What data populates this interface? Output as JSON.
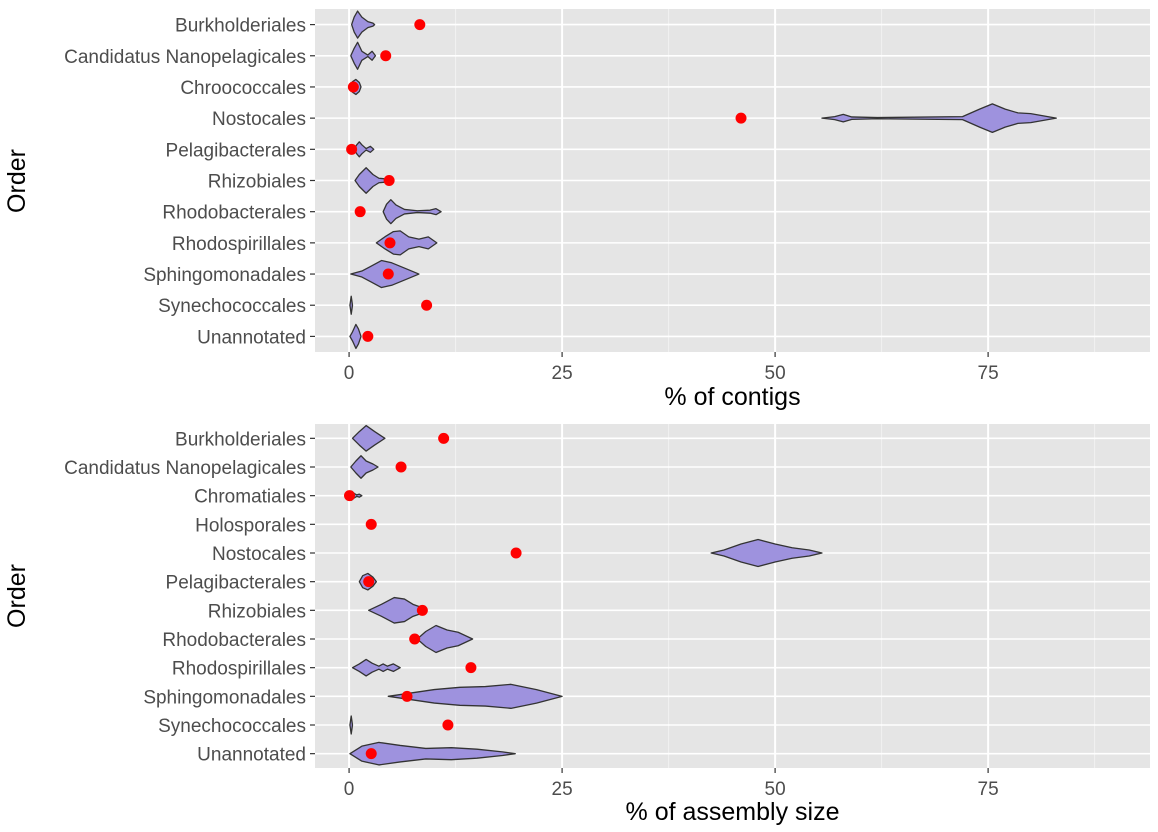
{
  "chart_data": [
    {
      "type": "violin",
      "xlabel": "% of contigs",
      "ylabel": "Order",
      "xlim": [
        -4,
        94
      ],
      "xticks": [
        0,
        25,
        50,
        75
      ],
      "grid": true,
      "categories": [
        "Burkholderiales",
        "Candidatus Nanopelagicales",
        "Chroococcales",
        "Nostocales",
        "Pelagibacterales",
        "Rhizobiales",
        "Rhodobacterales",
        "Rhodospirillales",
        "Sphingomonadales",
        "Synechococcales",
        "Unannotated"
      ],
      "violin_color": "#9e92de",
      "point_color": "#ff0000",
      "series": [
        {
          "category": "Burkholderiales",
          "point": 8.3,
          "density": [
            [
              0.3,
              0
            ],
            [
              0.6,
              0.5
            ],
            [
              1.0,
              0.9
            ],
            [
              1.5,
              0.5
            ],
            [
              2.2,
              0.2
            ],
            [
              2.8,
              0.1
            ],
            [
              3.0,
              0
            ]
          ]
        },
        {
          "category": "Candidatus Nanopelagicales",
          "point": 4.3,
          "density": [
            [
              0.2,
              0
            ],
            [
              0.6,
              0.5
            ],
            [
              1.0,
              0.9
            ],
            [
              1.5,
              0.3
            ],
            [
              2.2,
              0.05
            ],
            [
              2.7,
              0.3
            ],
            [
              3.1,
              0
            ]
          ]
        },
        {
          "category": "Chroococcales",
          "point": 0.5,
          "density": [
            [
              0.1,
              0
            ],
            [
              0.4,
              0.35
            ],
            [
              0.8,
              0.5
            ],
            [
              1.2,
              0.3
            ],
            [
              1.4,
              0
            ]
          ]
        },
        {
          "category": "Nostocales",
          "point": 46,
          "density": [
            [
              55.5,
              0
            ],
            [
              57,
              0.1
            ],
            [
              58,
              0.25
            ],
            [
              59,
              0.08
            ],
            [
              62,
              0.04
            ],
            [
              72,
              0.1
            ],
            [
              74,
              0.6
            ],
            [
              75.5,
              0.95
            ],
            [
              77,
              0.6
            ],
            [
              78.5,
              0.35
            ],
            [
              80,
              0.3
            ],
            [
              81.5,
              0.15
            ],
            [
              83,
              0
            ]
          ]
        },
        {
          "category": "Pelagibacterales",
          "point": 0.3,
          "density": [
            [
              0.6,
              0
            ],
            [
              0.9,
              0.3
            ],
            [
              1.2,
              0.5
            ],
            [
              1.5,
              0.3
            ],
            [
              2.0,
              0.05
            ],
            [
              2.5,
              0.2
            ],
            [
              2.9,
              0
            ]
          ]
        },
        {
          "category": "Rhizobiales",
          "point": 4.7,
          "density": [
            [
              0.7,
              0
            ],
            [
              1.2,
              0.4
            ],
            [
              2.0,
              0.85
            ],
            [
              2.8,
              0.4
            ],
            [
              3.5,
              0.15
            ],
            [
              4.4,
              0.1
            ],
            [
              5.2,
              0
            ]
          ]
        },
        {
          "category": "Rhodobacterales",
          "point": 1.3,
          "density": [
            [
              4.0,
              0
            ],
            [
              4.4,
              0.5
            ],
            [
              4.9,
              0.8
            ],
            [
              5.5,
              0.45
            ],
            [
              6.5,
              0.15
            ],
            [
              8,
              0.06
            ],
            [
              9.5,
              0.1
            ],
            [
              10.2,
              0.2
            ],
            [
              10.8,
              0
            ]
          ]
        },
        {
          "category": "Rhodospirillales",
          "point": 4.8,
          "density": [
            [
              3.2,
              0
            ],
            [
              4.2,
              0.4
            ],
            [
              5.2,
              0.75
            ],
            [
              6.0,
              0.8
            ],
            [
              7.0,
              0.4
            ],
            [
              8.2,
              0.25
            ],
            [
              9.3,
              0.4
            ],
            [
              10.3,
              0
            ]
          ]
        },
        {
          "category": "Sphingomonadales",
          "point": 4.6,
          "density": [
            [
              0.2,
              0
            ],
            [
              1.5,
              0.2
            ],
            [
              2.5,
              0.5
            ],
            [
              3.8,
              0.9
            ],
            [
              5,
              0.75
            ],
            [
              6.5,
              0.4
            ],
            [
              8.2,
              0
            ]
          ]
        },
        {
          "category": "Synechococcales",
          "point": 9.1,
          "density": [
            [
              0.1,
              0
            ],
            [
              0.25,
              0.6
            ],
            [
              0.4,
              0
            ]
          ]
        },
        {
          "category": "Unannotated",
          "point": 2.2,
          "density": [
            [
              0.1,
              0
            ],
            [
              0.4,
              0.3
            ],
            [
              0.8,
              0.8
            ],
            [
              1.1,
              0.5
            ],
            [
              1.4,
              0
            ]
          ]
        }
      ]
    },
    {
      "type": "violin",
      "xlabel": "% of assembly size",
      "ylabel": "Order",
      "xlim": [
        -4,
        94
      ],
      "xticks": [
        0,
        25,
        50,
        75
      ],
      "grid": true,
      "categories": [
        "Burkholderiales",
        "Candidatus Nanopelagicales",
        "Chromatiales",
        "Holosporales",
        "Nostocales",
        "Pelagibacterales",
        "Rhizobiales",
        "Rhodobacterales",
        "Rhodospirillales",
        "Sphingomonadales",
        "Synechococcales",
        "Unannotated"
      ],
      "violin_color": "#9e92de",
      "point_color": "#ff0000",
      "series": [
        {
          "category": "Burkholderiales",
          "point": 11.1,
          "density": [
            [
              0.4,
              0
            ],
            [
              1.2,
              0.45
            ],
            [
              2.0,
              0.85
            ],
            [
              3.0,
              0.45
            ],
            [
              4.2,
              0
            ]
          ]
        },
        {
          "category": "Candidatus Nanopelagicales",
          "point": 6.1,
          "density": [
            [
              0.2,
              0
            ],
            [
              0.8,
              0.4
            ],
            [
              1.4,
              0.75
            ],
            [
              2.0,
              0.4
            ],
            [
              2.8,
              0.2
            ],
            [
              3.4,
              0
            ]
          ]
        },
        {
          "category": "Chromatiales",
          "point": 0.05,
          "density": [
            [
              0.0,
              0
            ],
            [
              0.3,
              0.3
            ],
            [
              0.6,
              0.15
            ],
            [
              0.9,
              0.05
            ],
            [
              1.2,
              0.1
            ],
            [
              1.5,
              0
            ]
          ]
        },
        {
          "category": "Holosporales",
          "point": 2.6,
          "density": []
        },
        {
          "category": "Nostocales",
          "point": 19.6,
          "density": [
            [
              42.5,
              0
            ],
            [
              44,
              0.2
            ],
            [
              46,
              0.6
            ],
            [
              48,
              0.9
            ],
            [
              50,
              0.6
            ],
            [
              52,
              0.35
            ],
            [
              54,
              0.2
            ],
            [
              55.5,
              0
            ]
          ]
        },
        {
          "category": "Pelagibacterales",
          "point": 2.3,
          "density": [
            [
              1.2,
              0
            ],
            [
              1.6,
              0.4
            ],
            [
              2.2,
              0.55
            ],
            [
              2.8,
              0.3
            ],
            [
              3.2,
              0
            ]
          ]
        },
        {
          "category": "Rhizobiales",
          "point": 8.6,
          "density": [
            [
              2.3,
              0
            ],
            [
              3.8,
              0.4
            ],
            [
              5.3,
              0.85
            ],
            [
              6.5,
              0.75
            ],
            [
              7.5,
              0.4
            ],
            [
              8.5,
              0.2
            ],
            [
              9,
              0
            ]
          ]
        },
        {
          "category": "Rhodobacterales",
          "point": 7.7,
          "density": [
            [
              8.0,
              0
            ],
            [
              9.0,
              0.5
            ],
            [
              10.2,
              0.9
            ],
            [
              11.5,
              0.6
            ],
            [
              12.8,
              0.45
            ],
            [
              14.5,
              0
            ]
          ]
        },
        {
          "category": "Rhodospirillales",
          "point": 14.3,
          "density": [
            [
              0.4,
              0
            ],
            [
              1.2,
              0.25
            ],
            [
              2.0,
              0.55
            ],
            [
              2.7,
              0.3
            ],
            [
              3.5,
              0.1
            ],
            [
              4.0,
              0.25
            ],
            [
              4.5,
              0.1
            ],
            [
              5.2,
              0.25
            ],
            [
              6.0,
              0
            ]
          ]
        },
        {
          "category": "Sphingomonadales",
          "point": 6.8,
          "density": [
            [
              4.6,
              0
            ],
            [
              7,
              0.2
            ],
            [
              10,
              0.45
            ],
            [
              13,
              0.6
            ],
            [
              16,
              0.65
            ],
            [
              19,
              0.8
            ],
            [
              22,
              0.45
            ],
            [
              25,
              0
            ]
          ]
        },
        {
          "category": "Synechococcales",
          "point": 11.6,
          "density": [
            [
              0.1,
              0
            ],
            [
              0.25,
              0.6
            ],
            [
              0.4,
              0
            ]
          ]
        },
        {
          "category": "Unannotated",
          "point": 2.6,
          "density": [
            [
              0.1,
              0
            ],
            [
              1.5,
              0.5
            ],
            [
              3.5,
              0.75
            ],
            [
              6,
              0.55
            ],
            [
              9,
              0.35
            ],
            [
              12,
              0.4
            ],
            [
              15,
              0.3
            ],
            [
              18,
              0.12
            ],
            [
              19.5,
              0
            ]
          ]
        }
      ]
    }
  ]
}
